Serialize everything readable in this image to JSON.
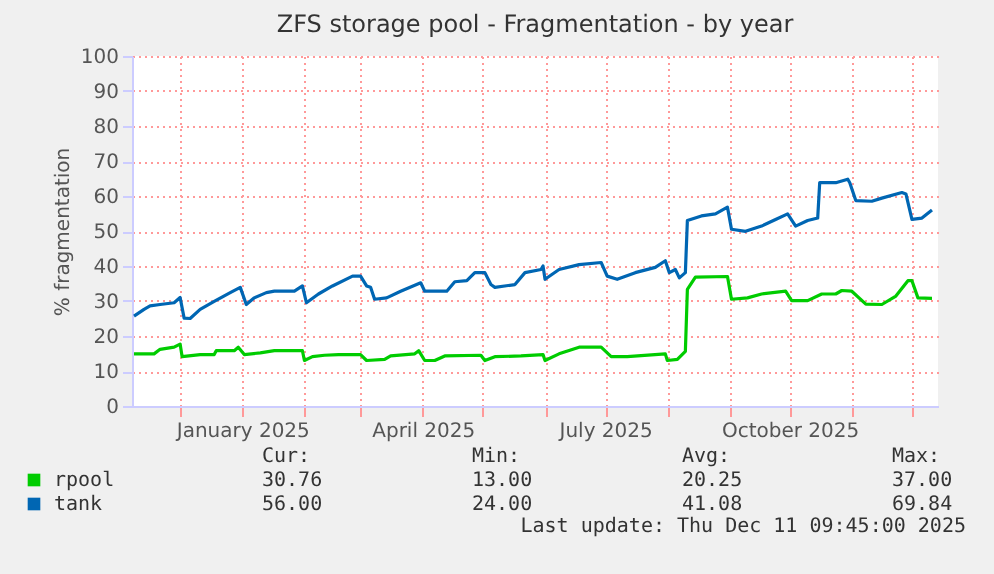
{
  "chart_data": {
    "type": "line",
    "title": "ZFS storage pool - Fragmentation - by year",
    "ylabel": "% fragmentation",
    "xlim": [
      "2024-11-07",
      "2025-12-14"
    ],
    "xticks": [
      {
        "value": "2024-12-01",
        "label": null
      },
      {
        "value": "2025-01-01",
        "label": "January 2025"
      },
      {
        "value": "2025-02-01",
        "label": null
      },
      {
        "value": "2025-03-01",
        "label": null
      },
      {
        "value": "2025-04-01",
        "label": "April 2025"
      },
      {
        "value": "2025-05-01",
        "label": null
      },
      {
        "value": "2025-06-01",
        "label": null
      },
      {
        "value": "2025-07-01",
        "label": "July 2025"
      },
      {
        "value": "2025-08-01",
        "label": null
      },
      {
        "value": "2025-09-01",
        "label": null
      },
      {
        "value": "2025-10-01",
        "label": "October 2025"
      },
      {
        "value": "2025-11-01",
        "label": null
      },
      {
        "value": "2025-12-01",
        "label": null
      }
    ],
    "ylim": [
      0,
      100
    ],
    "yticks": [
      0,
      10,
      20,
      30,
      40,
      50,
      60,
      70,
      80,
      90,
      100
    ],
    "grid": true,
    "legend": "bottom",
    "marker": "none",
    "line_style": "solid",
    "series": [
      {
        "name": "rpool",
        "color": "#00cc00",
        "x": [
          "2024-11-08",
          "2024-11-18",
          "2024-11-21",
          "2024-11-28",
          "2024-12-01",
          "2024-12-02",
          "2024-12-11",
          "2024-12-18",
          "2024-12-19",
          "2024-12-28",
          "2024-12-30",
          "2025-01-02",
          "2025-01-10",
          "2025-01-17",
          "2025-01-31",
          "2025-02-01",
          "2025-02-05",
          "2025-02-11",
          "2025-02-18",
          "2025-03-01",
          "2025-03-04",
          "2025-03-13",
          "2025-03-16",
          "2025-03-28",
          "2025-03-30",
          "2025-04-02",
          "2025-04-07",
          "2025-04-12",
          "2025-04-30",
          "2025-05-02",
          "2025-05-07",
          "2025-05-20",
          "2025-05-31",
          "2025-06-01",
          "2025-06-08",
          "2025-06-18",
          "2025-06-29",
          "2025-07-04",
          "2025-07-12",
          "2025-07-31",
          "2025-08-01",
          "2025-08-06",
          "2025-08-10",
          "2025-08-11",
          "2025-08-15",
          "2025-08-31",
          "2025-09-02",
          "2025-09-10",
          "2025-09-17",
          "2025-09-29",
          "2025-10-02",
          "2025-10-10",
          "2025-10-17",
          "2025-10-24",
          "2025-10-27",
          "2025-11-01",
          "2025-11-08",
          "2025-11-16",
          "2025-11-23",
          "2025-11-29",
          "2025-12-01",
          "2025-12-04",
          "2025-12-11"
        ],
        "values": [
          14.9,
          14.9,
          16.2,
          16.8,
          17.7,
          14.1,
          14.7,
          14.7,
          15.8,
          15.8,
          16.8,
          14.7,
          15.2,
          15.8,
          15.8,
          13,
          14.1,
          14.5,
          14.7,
          14.7,
          13,
          13.3,
          14.3,
          14.9,
          15.8,
          13,
          13,
          14.3,
          14.5,
          13,
          14.1,
          14.3,
          14.7,
          13,
          14.9,
          16.8,
          16.8,
          14.1,
          14.1,
          14.9,
          13,
          13.3,
          15.6,
          33.3,
          36.8,
          37,
          30.5,
          30.9,
          32,
          32.8,
          30.1,
          30.1,
          32,
          32,
          33,
          32.8,
          29.1,
          29,
          31.4,
          35.8,
          35.8,
          30.9,
          30.76
        ]
      },
      {
        "name": "tank",
        "color": "#0066b3",
        "x": [
          "2024-11-08",
          "2024-11-13",
          "2024-11-16",
          "2024-11-21",
          "2024-11-28",
          "2024-12-01",
          "2024-12-03",
          "2024-12-06",
          "2024-12-11",
          "2024-12-18",
          "2024-12-26",
          "2024-12-31",
          "2025-01-03",
          "2025-01-07",
          "2025-01-13",
          "2025-01-17",
          "2025-01-27",
          "2025-01-31",
          "2025-02-02",
          "2025-02-08",
          "2025-02-15",
          "2025-02-25",
          "2025-03-01",
          "2025-03-04",
          "2025-03-06",
          "2025-03-08",
          "2025-03-14",
          "2025-03-21",
          "2025-03-31",
          "2025-04-02",
          "2025-04-13",
          "2025-04-17",
          "2025-04-23",
          "2025-04-27",
          "2025-05-02",
          "2025-05-05",
          "2025-05-07",
          "2025-05-17",
          "2025-05-22",
          "2025-05-30",
          "2025-05-31",
          "2025-06-01",
          "2025-06-08",
          "2025-06-18",
          "2025-06-29",
          "2025-07-02",
          "2025-07-07",
          "2025-07-16",
          "2025-07-26",
          "2025-07-31",
          "2025-08-02",
          "2025-08-05",
          "2025-08-07",
          "2025-08-10",
          "2025-08-11",
          "2025-08-18",
          "2025-08-25",
          "2025-08-31",
          "2025-09-02",
          "2025-09-09",
          "2025-09-17",
          "2025-09-24",
          "2025-09-30",
          "2025-10-04",
          "2025-10-10",
          "2025-10-15",
          "2025-10-16",
          "2025-10-24",
          "2025-10-30",
          "2025-10-31",
          "2025-11-03",
          "2025-11-11",
          "2025-11-16",
          "2025-11-26",
          "2025-11-28",
          "2025-12-01",
          "2025-12-06",
          "2025-12-11"
        ],
        "values": [
          25.7,
          27.6,
          28.6,
          29,
          29.5,
          31,
          25.1,
          25,
          27.6,
          29.9,
          32.4,
          33.9,
          29,
          30.9,
          32.4,
          32.8,
          32.8,
          34.3,
          29.5,
          32,
          34.3,
          37.1,
          37.1,
          34.3,
          33.9,
          30.5,
          30.9,
          32.8,
          35.2,
          32.8,
          32.8,
          35.5,
          35.8,
          38.1,
          38.1,
          34.7,
          33.9,
          34.7,
          38.1,
          39,
          40,
          36.2,
          39,
          40.4,
          41,
          37.1,
          36.2,
          38.1,
          39.6,
          41.5,
          38.1,
          39,
          36.6,
          38.1,
          53,
          54.3,
          54.9,
          56.8,
          50.5,
          49.9,
          51.4,
          53.3,
          54.9,
          51.4,
          53,
          53.7,
          63.8,
          63.8,
          64.8,
          63.8,
          58.7,
          58.5,
          59.4,
          61,
          60.6,
          53.3,
          53.7,
          56
        ]
      }
    ],
    "annotations": [
      "Cur:",
      "Min:",
      "Avg:",
      "Max:",
      "30.76",
      "13.00",
      "20.25",
      "37.00",
      "56.00",
      "24.00",
      "41.08",
      "69.84",
      "Last update: Thu Dec 11 09:45:00 2025"
    ]
  }
}
